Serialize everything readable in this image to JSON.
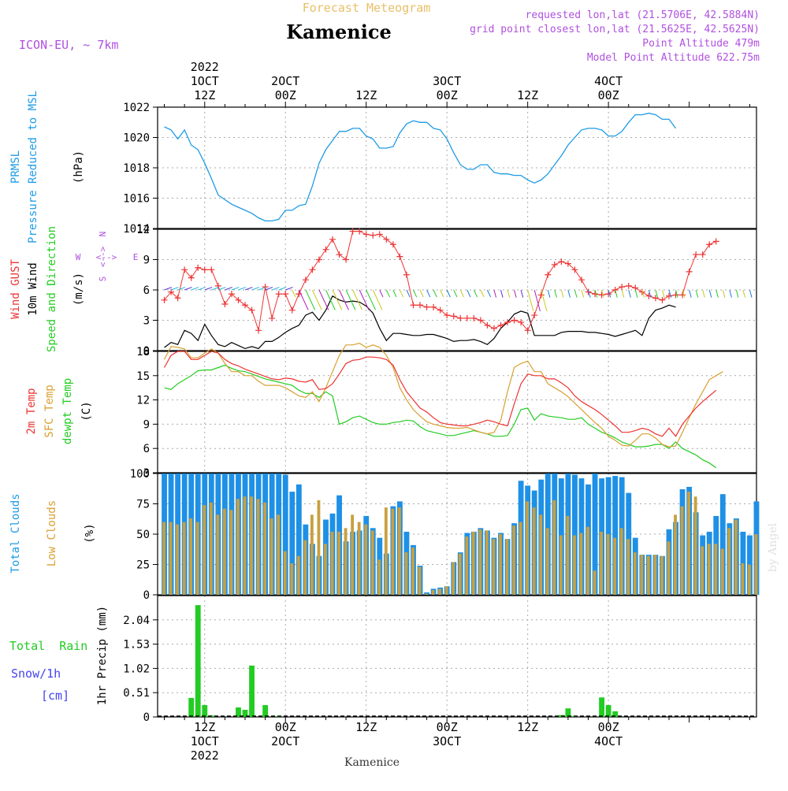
{
  "header": {
    "super_title": "Forecast Meteogram",
    "location": "Kamenice",
    "model": "ICON-EU, ~ 7km",
    "info_lines": [
      "requested lon,lat (21.5706E, 42.5884N)",
      "grid point closest lon,lat (21.5625E, 42.5625N)",
      "Point Altitude 479m",
      "Model Point Altitude 622.75m"
    ],
    "watermark": "by Angel",
    "footer_location": "Kamenice"
  },
  "time_axis": {
    "top_labels": [
      {
        "h": 12,
        "lines": [
          "2022",
          "1OCT",
          "12Z"
        ]
      },
      {
        "h": 24,
        "lines": [
          "2OCT",
          "00Z"
        ]
      },
      {
        "h": 36,
        "lines": [
          "12Z"
        ]
      },
      {
        "h": 48,
        "lines": [
          "3OCT",
          "00Z"
        ]
      },
      {
        "h": 60,
        "lines": [
          "12Z"
        ]
      },
      {
        "h": 72,
        "lines": [
          "4OCT",
          "00Z"
        ]
      }
    ],
    "bottom_labels": [
      {
        "h": 12,
        "lines": [
          "12Z",
          "1OCT",
          "2022"
        ]
      },
      {
        "h": 24,
        "lines": [
          "00Z",
          "2OCT"
        ]
      },
      {
        "h": 36,
        "lines": [
          "12Z"
        ]
      },
      {
        "h": 48,
        "lines": [
          "00Z",
          "3OCT"
        ]
      },
      {
        "h": 60,
        "lines": [
          "12Z"
        ]
      },
      {
        "h": 72,
        "lines": [
          "00Z",
          "4OCT"
        ]
      }
    ]
  },
  "colors": {
    "pressure": "#1e9be6",
    "gust": "#ee3333",
    "wind": "#000000",
    "t2m": "#ee3333",
    "sfc": "#d8a030",
    "dew": "#22cc22",
    "total_cloud": "#1e90e6",
    "low_cloud": "#c8a040",
    "rain": "#22cc22",
    "snow": "#4444ee",
    "violet": "#b050e0",
    "green_label": "#22cc22"
  },
  "chart_data": [
    {
      "type": "line",
      "panel": "pressure",
      "ylabel_lines": [
        "PRMSL",
        "Pressure Reduced to MSL",
        "(hPa)"
      ],
      "ylim": [
        1014,
        1022
      ],
      "yticks": [
        1014,
        1016,
        1018,
        1020,
        1022
      ],
      "grid": true,
      "series": [
        {
          "name": "PRMSL",
          "x_start": 6,
          "x_step": 1,
          "values": [
            1020.7,
            1020.5,
            1019.9,
            1020.5,
            1019.5,
            1019.2,
            1018.3,
            1017.3,
            1016.2,
            1015.9,
            1015.6,
            1015.4,
            1015.2,
            1015.0,
            1014.7,
            1014.5,
            1014.5,
            1014.6,
            1015.2,
            1015.2,
            1015.5,
            1015.6,
            1016.8,
            1018.3,
            1019.2,
            1019.8,
            1020.4,
            1020.4,
            1020.6,
            1020.6,
            1020.1,
            1019.9,
            1019.3,
            1019.3,
            1019.4,
            1020.3,
            1020.9,
            1021.1,
            1021.0,
            1021.0,
            1020.6,
            1020.5,
            1019.9,
            1019.0,
            1018.2,
            1017.9,
            1017.9,
            1018.2,
            1018.2,
            1017.7,
            1017.6,
            1017.6,
            1017.5,
            1017.5,
            1017.2,
            1017.0,
            1017.2,
            1017.6,
            1018.2,
            1018.8,
            1019.5,
            1020.0,
            1020.5,
            1020.6,
            1020.6,
            1020.5,
            1020.1,
            1020.1,
            1020.4,
            1021.0,
            1021.5,
            1021.5,
            1021.6,
            1021.5,
            1021.2,
            1021.2,
            1020.6
          ]
        }
      ]
    },
    {
      "type": "line",
      "panel": "wind",
      "ylabel_lines": [
        "Wind GUST",
        "10m Wind",
        "Speed and Direction",
        "(m/s)"
      ],
      "compass": {
        "n": "N",
        "s": "S",
        "w": "W",
        "e": "E",
        "arrow": "<-->"
      },
      "ylim": [
        0,
        12
      ],
      "yticks": [
        0,
        3,
        6,
        9,
        12
      ],
      "grid": true,
      "series": [
        {
          "name": "Wind GUST",
          "x_start": 6,
          "x_step": 1,
          "values": [
            5.0,
            5.8,
            5.2,
            8.0,
            7.2,
            8.2,
            8.0,
            8.0,
            6.4,
            4.6,
            5.6,
            5.0,
            4.5,
            4.0,
            2.0,
            6.3,
            3.2,
            5.6,
            5.6,
            4.0,
            5.6,
            7.0,
            8.0,
            9.0,
            10.0,
            11.0,
            9.5,
            9.0,
            11.8,
            11.8,
            11.5,
            11.4,
            11.5,
            11.0,
            10.5,
            9.3,
            7.5,
            4.5,
            4.5,
            4.3,
            4.3,
            4.0,
            3.5,
            3.4,
            3.2,
            3.2,
            3.2,
            3.0,
            2.5,
            2.2,
            2.5,
            2.8,
            3.0,
            2.8,
            2.0,
            3.5,
            5.5,
            7.5,
            8.5,
            8.8,
            8.6,
            8.0,
            7.0,
            5.8,
            5.6,
            5.5,
            5.6,
            6.0,
            6.3,
            6.4,
            6.2,
            5.8,
            5.4,
            5.2,
            5.0,
            5.4,
            5.5,
            5.5,
            7.8,
            9.5,
            9.5,
            10.5,
            10.8
          ]
        },
        {
          "name": "10m Wind",
          "x_start": 6,
          "x_step": 1,
          "values": [
            0.3,
            0.8,
            0.6,
            2.0,
            1.7,
            1.0,
            2.6,
            1.5,
            0.6,
            0.4,
            0.8,
            0.5,
            0.2,
            0.4,
            0.2,
            0.9,
            0.9,
            1.3,
            1.8,
            2.2,
            2.5,
            3.5,
            3.8,
            3.0,
            4.0,
            5.4,
            5.0,
            4.8,
            4.9,
            4.8,
            4.4,
            3.7,
            2.2,
            1.0,
            1.7,
            1.7,
            1.6,
            1.5,
            1.5,
            1.6,
            1.6,
            1.4,
            1.2,
            0.9,
            1.0,
            1.0,
            1.1,
            0.9,
            0.6,
            1.2,
            2.2,
            2.8,
            3.6,
            3.9,
            3.7,
            1.5,
            1.5,
            1.5,
            1.5,
            1.8,
            1.9,
            1.9,
            1.9,
            1.8,
            1.8,
            1.7,
            1.6,
            1.4,
            1.6,
            1.8,
            2.0,
            1.5,
            3.2,
            4.0,
            4.2,
            4.5,
            4.3
          ]
        }
      ]
    },
    {
      "type": "line",
      "panel": "temperature",
      "ylabel_lines": [
        "2m Temp",
        "SFC Temp",
        "dewpt Temp",
        "(C)"
      ],
      "ylim": [
        3,
        18
      ],
      "yticks": [
        3,
        6,
        9,
        12,
        15,
        18
      ],
      "grid": true,
      "series": [
        {
          "name": "2m Temp",
          "x_start": 6,
          "x_step": 1,
          "values": [
            16.0,
            17.5,
            18.0,
            18.0,
            17.0,
            17.0,
            17.5,
            18.0,
            17.8,
            17.0,
            16.5,
            16.2,
            15.8,
            15.5,
            15.2,
            14.9,
            14.6,
            14.5,
            14.7,
            14.6,
            14.3,
            14.2,
            14.5,
            13.3,
            13.4,
            14.0,
            15.2,
            16.5,
            16.9,
            17.0,
            17.3,
            17.3,
            17.2,
            17.0,
            16.3,
            14.5,
            13.0,
            12.0,
            11.0,
            10.5,
            9.8,
            9.2,
            9.0,
            8.9,
            8.8,
            8.8,
            9.0,
            9.2,
            9.5,
            9.3,
            9.0,
            8.8,
            11.5,
            14.0,
            15.2,
            15.0,
            15.0,
            14.6,
            14.6,
            14.1,
            13.5,
            12.5,
            11.8,
            11.3,
            10.8,
            10.2,
            9.5,
            8.8,
            8.0,
            8.0,
            8.2,
            8.5,
            8.3,
            7.8,
            7.5,
            8.5,
            7.5,
            9.0,
            10.0,
            11.0,
            11.8,
            12.5,
            13.2
          ]
        },
        {
          "name": "SFC Temp",
          "x_start": 6,
          "x_step": 1,
          "values": [
            17.0,
            18.6,
            18.5,
            18.3,
            17.2,
            17.2,
            17.8,
            18.3,
            17.8,
            16.5,
            15.5,
            15.5,
            15.0,
            15.0,
            14.3,
            13.8,
            13.8,
            13.8,
            13.5,
            13.0,
            12.5,
            12.3,
            13.0,
            11.8,
            13.5,
            15.5,
            17.5,
            18.8,
            18.8,
            19.0,
            18.5,
            18.8,
            18.5,
            17.5,
            16.0,
            13.5,
            12.0,
            10.8,
            10.0,
            9.3,
            9.0,
            8.8,
            8.6,
            8.5,
            8.5,
            8.6,
            8.3,
            8.0,
            7.8,
            8.0,
            9.5,
            13.0,
            16.0,
            16.5,
            16.8,
            15.5,
            15.5,
            14.0,
            13.5,
            13.0,
            12.4,
            11.6,
            10.8,
            10.0,
            9.2,
            8.5,
            7.5,
            7.0,
            6.4,
            6.3,
            7.0,
            7.8,
            7.8,
            7.3,
            6.5,
            6.2,
            6.3,
            8.0,
            9.8,
            11.5,
            13.0,
            14.5,
            15.0,
            15.5
          ]
        },
        {
          "name": "dewpt Temp",
          "x_start": 6,
          "x_step": 1,
          "values": [
            13.5,
            13.3,
            14.0,
            14.5,
            15.0,
            15.6,
            15.7,
            15.7,
            16.0,
            16.3,
            15.9,
            15.6,
            15.5,
            15.2,
            14.9,
            14.6,
            14.4,
            14.2,
            14.0,
            13.8,
            13.2,
            12.8,
            12.8,
            12.3,
            13.0,
            12.5,
            9.0,
            9.3,
            9.8,
            10.0,
            9.6,
            9.2,
            9.0,
            9.0,
            9.2,
            9.3,
            9.5,
            9.4,
            8.7,
            8.2,
            8.0,
            7.8,
            7.6,
            7.6,
            7.8,
            8.0,
            8.2,
            8.0,
            7.8,
            7.5,
            7.5,
            7.6,
            9.0,
            10.8,
            11.0,
            9.5,
            10.3,
            10.0,
            9.9,
            9.8,
            9.6,
            9.6,
            9.8,
            9.0,
            8.5,
            8.0,
            7.7,
            7.3,
            6.8,
            6.5,
            6.2,
            6.2,
            6.3,
            6.5,
            6.5,
            6.0,
            6.8,
            6.0,
            5.6,
            5.2,
            4.6,
            4.2,
            3.6
          ]
        }
      ]
    },
    {
      "type": "bar",
      "panel": "clouds",
      "ylabel_lines": [
        "Total Clouds",
        "Low Clouds",
        "(%)"
      ],
      "ylim": [
        0,
        100
      ],
      "yticks": [
        0,
        25,
        50,
        75,
        100
      ],
      "grid": true,
      "series": [
        {
          "name": "Total Clouds",
          "x_start": 6,
          "x_step": 1,
          "values": [
            100,
            100,
            100,
            100,
            100,
            100,
            100,
            100,
            100,
            100,
            100,
            100,
            100,
            100,
            100,
            100,
            100,
            100,
            99,
            85,
            91,
            58,
            42,
            32,
            62,
            67,
            82,
            44,
            52,
            53,
            65,
            55,
            47,
            34,
            73,
            77,
            52,
            41,
            24,
            2,
            5,
            6,
            7,
            27,
            35,
            51,
            52,
            55,
            53,
            47,
            51,
            46,
            59,
            94,
            90,
            86,
            95,
            100,
            100,
            96,
            100,
            99,
            96,
            91,
            100,
            96,
            97,
            98,
            97,
            84,
            47,
            33,
            33,
            33,
            32,
            54,
            60,
            87,
            89,
            68,
            49,
            52,
            65,
            83,
            59,
            63,
            52,
            49,
            77
          ]
        },
        {
          "name": "Low Clouds",
          "x_start": 6,
          "x_step": 1,
          "values": [
            60,
            60,
            58,
            60,
            63,
            60,
            74,
            76,
            66,
            71,
            70,
            79,
            81,
            81,
            79,
            76,
            63,
            66,
            36,
            26,
            32,
            45,
            66,
            78,
            42,
            52,
            52,
            55,
            66,
            60,
            58,
            53,
            29,
            72,
            71,
            72,
            35,
            39,
            23,
            1,
            4,
            5,
            7,
            27,
            34,
            48,
            52,
            54,
            53,
            46,
            50,
            46,
            57,
            60,
            77,
            72,
            66,
            55,
            78,
            49,
            65,
            49,
            51,
            56,
            20,
            52,
            50,
            47,
            55,
            46,
            35,
            33,
            32,
            33,
            32,
            44,
            66,
            73,
            85,
            81,
            40,
            42,
            42,
            38,
            55,
            62,
            26,
            25,
            50
          ]
        }
      ]
    },
    {
      "type": "bar",
      "panel": "precip",
      "ylabel_lines": [
        "1hr Precip (mm)"
      ],
      "side_labels": [
        "Total  Rain",
        "Snow/1h",
        "[cm]"
      ],
      "ylim": [
        0,
        2.55
      ],
      "yticks": [
        0,
        0.51,
        1.02,
        1.53,
        2.04
      ],
      "grid": true,
      "series": [
        {
          "name": "Total Rain",
          "x_start": 6,
          "x_step": 1,
          "values": [
            0,
            0,
            0,
            0,
            0.4,
            2.35,
            0.25,
            0.03,
            0,
            0,
            0,
            0.2,
            0.15,
            1.08,
            0,
            0.25,
            0,
            0.02,
            0,
            0,
            0,
            0,
            0,
            0,
            0,
            0,
            0,
            0,
            0,
            0,
            0,
            0,
            0,
            0,
            0,
            0,
            0,
            0,
            0,
            0,
            0,
            0,
            0,
            0,
            0,
            0,
            0,
            0,
            0,
            0,
            0,
            0,
            0,
            0,
            0,
            0,
            0,
            0,
            0,
            0.04,
            0.18,
            0.02,
            0,
            0,
            0,
            0.41,
            0.25,
            0.12,
            0,
            0,
            0,
            0,
            0,
            0,
            0,
            0,
            0,
            0,
            0,
            0,
            0,
            0,
            0,
            0,
            0,
            0,
            0,
            0,
            0
          ]
        }
      ]
    }
  ]
}
